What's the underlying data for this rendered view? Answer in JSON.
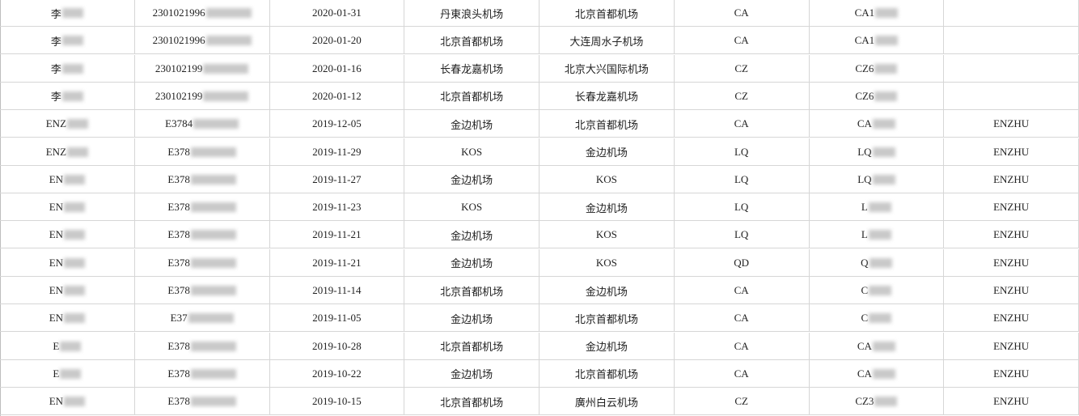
{
  "table": {
    "rows": [
      [
        "李",
        "2301021996",
        "2020-01-31",
        "丹東浪头机场",
        "北京首都机场",
        "CA",
        "CA1"
      ],
      [
        "李",
        "2301021996",
        "2020-01-20",
        "北京首都机场",
        "大连周水子机场",
        "CA",
        "CA1"
      ],
      [
        "李",
        "230102199",
        "2020-01-16",
        "长春龙嘉机场",
        "北京大兴国际机场",
        "CZ",
        "CZ6"
      ],
      [
        "李",
        "230102199",
        "2020-01-12",
        "北京首都机场",
        "长春龙嘉机场",
        "CZ",
        "CZ6"
      ],
      [
        "ENZ",
        "E3784",
        "2019-12-05",
        "金边机场",
        "北京首都机场",
        "CA",
        "CA",
        "ENZHU"
      ],
      [
        "ENZ",
        "E378",
        "2019-11-29",
        "KOS",
        "金边机场",
        "LQ",
        "LQ",
        "ENZHU"
      ],
      [
        "EN",
        "E378",
        "2019-11-27",
        "金边机场",
        "KOS",
        "LQ",
        "LQ",
        "ENZHU"
      ],
      [
        "EN",
        "E378",
        "2019-11-23",
        "KOS",
        "金边机场",
        "LQ",
        "L",
        "ENZHU"
      ],
      [
        "EN",
        "E378",
        "2019-11-21",
        "金边机场",
        "KOS",
        "LQ",
        "L",
        "ENZHU"
      ],
      [
        "EN",
        "E378",
        "2019-11-21",
        "金边机场",
        "KOS",
        "QD",
        "Q",
        "ENZHU"
      ],
      [
        "EN",
        "E378",
        "2019-11-14",
        "北京首都机场",
        "金边机场",
        "CA",
        "C",
        "ENZHU"
      ],
      [
        "EN",
        "E37",
        "2019-11-05",
        "金边机场",
        "北京首都机场",
        "CA",
        "C",
        "ENZHU"
      ],
      [
        "E",
        "E378",
        "2019-10-28",
        "北京首都机场",
        "金边机场",
        "CA",
        "CA",
        "ENZHU"
      ],
      [
        "E",
        "E378",
        "2019-10-22",
        "金边机场",
        "北京首都机场",
        "CA",
        "CA",
        "ENZHU"
      ],
      [
        "EN",
        "E378",
        "2019-10-15",
        "北京首都机场",
        "廣州白云机场",
        "CZ",
        "CZ3",
        "ENZHU"
      ]
    ]
  }
}
